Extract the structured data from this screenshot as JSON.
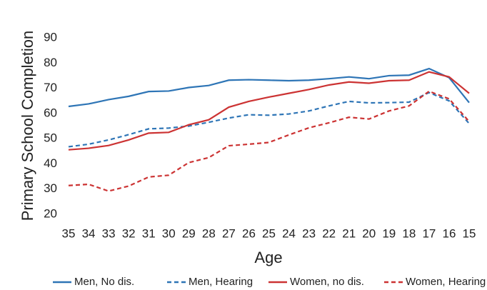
{
  "chart_data": {
    "type": "line",
    "xlabel": "Age",
    "ylabel": "Primary School Completion",
    "categories": [
      "35",
      "34",
      "33",
      "32",
      "31",
      "30",
      "29",
      "28",
      "27",
      "26",
      "25",
      "24",
      "23",
      "22",
      "21",
      "20",
      "19",
      "18",
      "17",
      "16",
      "15"
    ],
    "ylim": [
      20,
      90
    ],
    "yticks": [
      20,
      30,
      40,
      50,
      60,
      70,
      80,
      90
    ],
    "grid": false,
    "legend": "bottom",
    "series": [
      {
        "name": "Men, No dis.",
        "color": "#2e75b6",
        "dashed": false,
        "values": [
          62.8,
          63.8,
          65.5,
          66.8,
          68.7,
          68.9,
          70.3,
          71.1,
          73.2,
          73.4,
          73.2,
          73.0,
          73.2,
          73.8,
          74.5,
          73.8,
          75.0,
          75.2,
          77.8,
          74.2,
          64.3
        ]
      },
      {
        "name": "Men, Hearing",
        "color": "#2e75b6",
        "dashed": true,
        "values": [
          46.8,
          47.8,
          49.5,
          51.6,
          53.9,
          54.2,
          55.0,
          56.5,
          58.2,
          59.5,
          59.3,
          59.8,
          61.0,
          63.0,
          64.8,
          64.2,
          64.3,
          64.5,
          68.3,
          65.0,
          56.0
        ]
      },
      {
        "name": "Women, no dis.",
        "color": "#cc3333",
        "dashed": false,
        "values": [
          45.6,
          46.2,
          47.3,
          49.5,
          52.2,
          52.5,
          55.5,
          57.5,
          62.5,
          64.8,
          66.5,
          68.0,
          69.5,
          71.3,
          72.5,
          72.0,
          73.0,
          73.2,
          76.5,
          74.5,
          68.0
        ]
      },
      {
        "name": "Women, Hearing",
        "color": "#cc3333",
        "dashed": true,
        "values": [
          31.4,
          31.9,
          29.2,
          31.2,
          34.8,
          35.5,
          40.5,
          42.5,
          47.2,
          47.8,
          48.5,
          51.5,
          54.3,
          56.3,
          58.5,
          57.8,
          61.0,
          63.0,
          68.8,
          65.8,
          56.8
        ]
      }
    ]
  }
}
